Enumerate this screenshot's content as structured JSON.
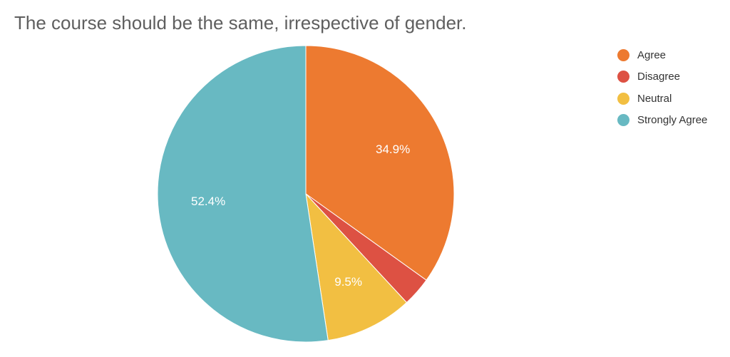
{
  "chart_data": {
    "type": "pie",
    "title": "The course should be the same, irrespective of gender.",
    "slices": [
      {
        "name": "Agree",
        "value": 34.9,
        "label": "34.9%",
        "color": "#ED7A30"
      },
      {
        "name": "Disagree",
        "value": 3.2,
        "label": "",
        "color": "#DD5143"
      },
      {
        "name": "Neutral",
        "value": 9.5,
        "label": "9.5%",
        "color": "#F2BF42"
      },
      {
        "name": "Strongly Agree",
        "value": 52.4,
        "label": "52.4%",
        "color": "#68B9C2"
      }
    ],
    "legend_position": "top-right",
    "label_color": "#ffffff"
  }
}
